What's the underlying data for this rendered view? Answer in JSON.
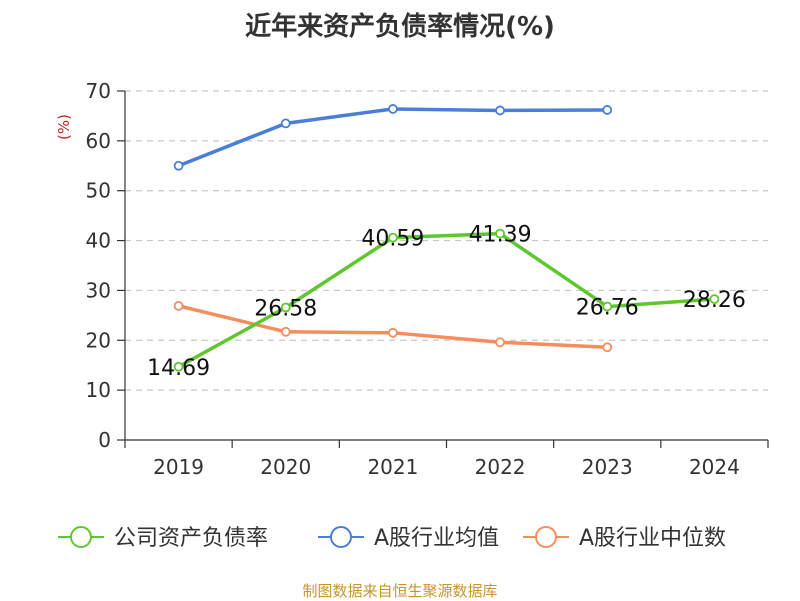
{
  "chart_data": {
    "type": "line",
    "title": "近年来资产负债率情况(%)",
    "ylabel": "(%)",
    "categories": [
      "2019",
      "2020",
      "2021",
      "2022",
      "2023",
      "2024"
    ],
    "ylim": [
      0,
      70
    ],
    "yticks": [
      "0",
      "10",
      "20",
      "30",
      "40",
      "50",
      "60",
      "70"
    ],
    "grid": true,
    "legend_position": "bottom",
    "series": [
      {
        "name": "公司资产负债率",
        "color": "#5fc72e",
        "values": [
          14.69,
          26.58,
          40.59,
          41.39,
          26.76,
          28.26
        ],
        "labels": [
          "14.69",
          "26.58",
          "40.59",
          "41.39",
          "26.76",
          "28.26"
        ]
      },
      {
        "name": "A股行业均值",
        "color": "#4a7ed8",
        "values": [
          55.0,
          63.5,
          66.4,
          66.1,
          66.2,
          null
        ]
      },
      {
        "name": "A股行业中位数",
        "color": "#f58d5c",
        "values": [
          26.9,
          21.7,
          21.5,
          19.6,
          18.6,
          null
        ]
      }
    ],
    "source": "制图数据来自恒生聚源数据库"
  }
}
